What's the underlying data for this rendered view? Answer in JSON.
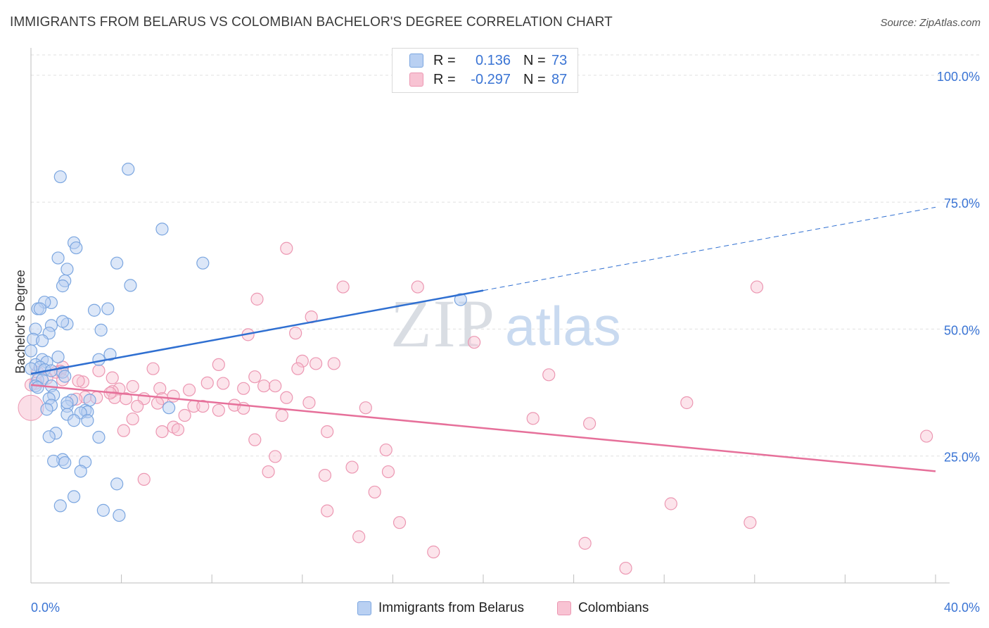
{
  "title": "IMMIGRANTS FROM BELARUS VS COLOMBIAN BACHELOR'S DEGREE CORRELATION CHART",
  "source": "Source: ZipAtlas.com",
  "watermark": {
    "zip": "ZIP",
    "atlas": "atlas"
  },
  "legend": {
    "rows": [
      {
        "r_label": "R =",
        "r_value": "0.136",
        "n_label": "N =",
        "n_value": "73"
      },
      {
        "r_label": "R =",
        "r_value": "-0.297",
        "n_label": "N =",
        "n_value": "87"
      }
    ]
  },
  "bottom_legend": [
    "Immigrants from Belarus",
    "Colombians"
  ],
  "colors": {
    "blue_fill": "#b9d0f2",
    "blue_stroke": "#7ba6e0",
    "blue_line": "#2f6fd1",
    "pink_fill": "#f8c3d3",
    "pink_stroke": "#ec97b2",
    "pink_line": "#e6709a",
    "tick_label": "#3a74d4",
    "grid": "#e0e0e0"
  },
  "chart_data": {
    "type": "scatter",
    "title": "IMMIGRANTS FROM BELARUS VS COLOMBIAN BACHELOR'S DEGREE CORRELATION CHART",
    "xlabel": "",
    "ylabel": "Bachelor's Degree",
    "xlim": [
      0,
      40
    ],
    "ylim": [
      0,
      104
    ],
    "x_tick_labels": [
      "0.0%",
      "40.0%"
    ],
    "y_ticks": [
      25,
      50,
      75,
      100
    ],
    "y_tick_labels": [
      "25.0%",
      "50.0%",
      "75.0%",
      "100.0%"
    ],
    "grid": true,
    "legend_position": "top-center",
    "series": [
      {
        "name": "Immigrants from Belarus",
        "color": "#b9d0f2",
        "trend": {
          "x0": 0,
          "y0": 41.2,
          "x1": 20,
          "y1": 57.6,
          "dashed_to_x": 40,
          "dashed_to_y": 74
        },
        "points": [
          [
            1.3,
            80
          ],
          [
            4.3,
            81.5
          ],
          [
            5.8,
            69.7
          ],
          [
            1.9,
            67
          ],
          [
            2.0,
            66
          ],
          [
            1.2,
            64
          ],
          [
            3.8,
            63
          ],
          [
            7.6,
            63
          ],
          [
            1.6,
            61.8
          ],
          [
            1.5,
            59.5
          ],
          [
            1.4,
            58.5
          ],
          [
            4.4,
            58.6
          ],
          [
            0.9,
            55.2
          ],
          [
            0.6,
            55.3
          ],
          [
            19.0,
            55.8
          ],
          [
            0.3,
            54
          ],
          [
            0.4,
            54
          ],
          [
            2.8,
            53.7
          ],
          [
            3.4,
            54
          ],
          [
            1.6,
            51
          ],
          [
            1.4,
            51.5
          ],
          [
            0.9,
            50.7
          ],
          [
            0.2,
            50
          ],
          [
            3.1,
            49.8
          ],
          [
            0.8,
            49.2
          ],
          [
            0.1,
            48
          ],
          [
            0.5,
            47.7
          ],
          [
            0.0,
            45.7
          ],
          [
            3.5,
            45
          ],
          [
            1.2,
            44.5
          ],
          [
            0.5,
            44
          ],
          [
            0.7,
            43.5
          ],
          [
            3.0,
            44
          ],
          [
            0.2,
            43
          ],
          [
            0.4,
            42.5
          ],
          [
            0.6,
            42
          ],
          [
            0.9,
            41.8
          ],
          [
            1.4,
            41.5
          ],
          [
            1.5,
            40.7
          ],
          [
            0.3,
            40
          ],
          [
            0.5,
            40
          ],
          [
            0.9,
            38.8
          ],
          [
            0.2,
            38.8
          ],
          [
            1.0,
            37
          ],
          [
            0.8,
            36.3
          ],
          [
            1.8,
            36
          ],
          [
            2.6,
            36
          ],
          [
            0.9,
            35
          ],
          [
            1.6,
            34.8
          ],
          [
            2.4,
            34
          ],
          [
            2.5,
            33.7
          ],
          [
            1.6,
            33.2
          ],
          [
            0.7,
            34.2
          ],
          [
            2.2,
            33.5
          ],
          [
            6.1,
            34.5
          ],
          [
            1.9,
            32
          ],
          [
            2.5,
            32
          ],
          [
            1.1,
            29.5
          ],
          [
            0.8,
            28.8
          ],
          [
            3.0,
            28.7
          ],
          [
            1.4,
            24.3
          ],
          [
            1.0,
            24
          ],
          [
            1.5,
            23.7
          ],
          [
            2.4,
            23.8
          ],
          [
            2.2,
            22
          ],
          [
            3.8,
            19.5
          ],
          [
            1.9,
            17
          ],
          [
            1.3,
            15.2
          ],
          [
            3.2,
            14.3
          ],
          [
            3.9,
            13.3
          ],
          [
            0.0,
            42.2
          ],
          [
            0.3,
            38.5
          ],
          [
            1.6,
            35.5
          ]
        ]
      },
      {
        "name": "Colombians",
        "color": "#f8c3d3",
        "trend": {
          "x0": 0,
          "y0": 39,
          "x1": 40,
          "y1": 22
        },
        "points": [
          [
            11.3,
            65.9
          ],
          [
            13.8,
            58.3
          ],
          [
            17.1,
            58.3
          ],
          [
            32.1,
            58.3
          ],
          [
            10.0,
            55.9
          ],
          [
            12.4,
            52.4
          ],
          [
            9.6,
            48.9
          ],
          [
            11.7,
            49.2
          ],
          [
            19.6,
            47.4
          ],
          [
            12.0,
            43.7
          ],
          [
            12.6,
            43.2
          ],
          [
            11.8,
            42.2
          ],
          [
            13.4,
            43.2
          ],
          [
            8.3,
            43
          ],
          [
            5.4,
            42.2
          ],
          [
            3.0,
            41.8
          ],
          [
            1.4,
            42.5
          ],
          [
            1.3,
            41.7
          ],
          [
            0.3,
            41.5
          ],
          [
            1.4,
            40
          ],
          [
            0.2,
            39.3
          ],
          [
            2.3,
            39.6
          ],
          [
            3.6,
            40.4
          ],
          [
            4.5,
            38.7
          ],
          [
            5.7,
            38.3
          ],
          [
            6.3,
            36.8
          ],
          [
            7.0,
            38
          ],
          [
            7.8,
            39.4
          ],
          [
            8.5,
            39.3
          ],
          [
            9.4,
            38.3
          ],
          [
            10.3,
            38.8
          ],
          [
            10.8,
            38.8
          ],
          [
            11.3,
            36.5
          ],
          [
            3.9,
            38.2
          ],
          [
            3.6,
            37.7
          ],
          [
            3.7,
            36.5
          ],
          [
            2.4,
            36.6
          ],
          [
            2.9,
            36.5
          ],
          [
            2.0,
            36.2
          ],
          [
            4.2,
            36.3
          ],
          [
            5.0,
            36.3
          ],
          [
            5.8,
            36.3
          ],
          [
            4.7,
            34.8
          ],
          [
            5.6,
            35.4
          ],
          [
            7.2,
            34.8
          ],
          [
            7.6,
            34.8
          ],
          [
            8.3,
            34
          ],
          [
            9.0,
            35
          ],
          [
            9.4,
            34.4
          ],
          [
            12.3,
            35.5
          ],
          [
            14.8,
            34.5
          ],
          [
            6.8,
            33
          ],
          [
            11.1,
            33
          ],
          [
            4.5,
            32.3
          ],
          [
            6.3,
            30.7
          ],
          [
            6.5,
            30.2
          ],
          [
            5.8,
            29.8
          ],
          [
            4.1,
            30
          ],
          [
            13.1,
            29.8
          ],
          [
            22.2,
            32.4
          ],
          [
            24.7,
            31.4
          ],
          [
            9.9,
            28.2
          ],
          [
            15.7,
            26.2
          ],
          [
            10.8,
            24.9
          ],
          [
            14.2,
            22.8
          ],
          [
            10.5,
            21.9
          ],
          [
            13.0,
            21.2
          ],
          [
            15.8,
            21.9
          ],
          [
            5.0,
            20.4
          ],
          [
            15.2,
            17.9
          ],
          [
            29.0,
            35.5
          ],
          [
            39.6,
            28.9
          ],
          [
            22.9,
            41
          ],
          [
            28.3,
            15.6
          ],
          [
            31.8,
            11.9
          ],
          [
            13.1,
            14.2
          ],
          [
            14.5,
            9.1
          ],
          [
            16.3,
            11.9
          ],
          [
            17.8,
            6.1
          ],
          [
            24.5,
            7.8
          ],
          [
            26.3,
            2.9
          ],
          [
            0.0,
            39
          ],
          [
            1.1,
            41.5
          ],
          [
            2.1,
            39.8
          ],
          [
            0.7,
            40.3
          ],
          [
            9.9,
            40.6
          ],
          [
            3.5,
            37.4
          ]
        ]
      }
    ]
  }
}
